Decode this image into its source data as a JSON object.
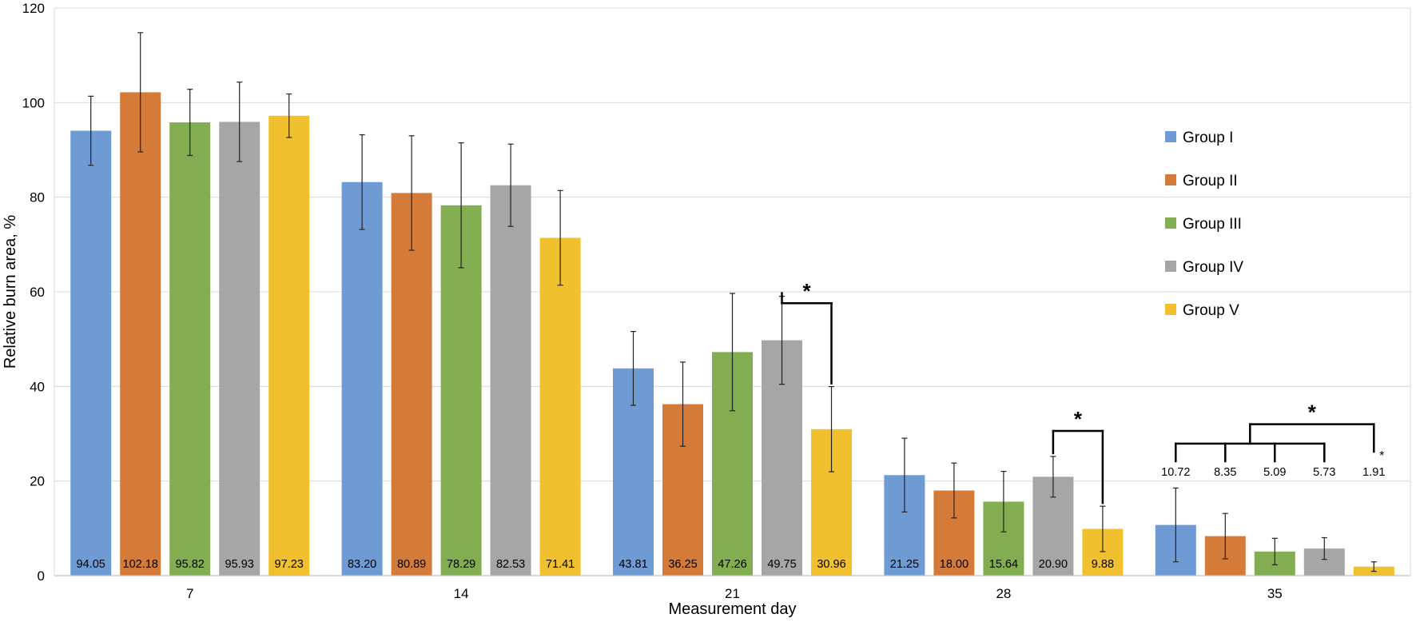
{
  "chart_data": {
    "type": "bar",
    "title": "",
    "xlabel": "Measurement day",
    "ylabel": "Relative burn area, %",
    "ylim": [
      0,
      120
    ],
    "yticks": [
      0,
      20,
      40,
      60,
      80,
      100,
      120
    ],
    "grid": true,
    "legend_position": "right",
    "categories": [
      "7",
      "14",
      "21",
      "28",
      "35"
    ],
    "series": [
      {
        "name": "Group I",
        "color": "#6f9bd4",
        "values": [
          94.05,
          83.2,
          43.81,
          21.25,
          10.72
        ],
        "labels": [
          "94.05",
          "83.20",
          "43.81",
          "21.25",
          "10.72"
        ],
        "error": [
          7.3,
          10.0,
          7.8,
          7.8,
          7.8
        ]
      },
      {
        "name": "Group II",
        "color": "#d57b39",
        "values": [
          102.18,
          80.89,
          36.25,
          18.0,
          8.35
        ],
        "labels": [
          "102.18",
          "80.89",
          "36.25",
          "18.00",
          "8.35"
        ],
        "error": [
          12.6,
          12.1,
          8.9,
          5.8,
          4.8
        ]
      },
      {
        "name": "Group III",
        "color": "#82ad51",
        "values": [
          95.82,
          78.29,
          47.26,
          15.64,
          5.09
        ],
        "labels": [
          "95.82",
          "78.29",
          "47.26",
          "15.64",
          "5.09"
        ],
        "error": [
          7.0,
          13.2,
          12.4,
          6.4,
          2.8
        ]
      },
      {
        "name": "Group IV",
        "color": "#a6a6a6",
        "values": [
          95.93,
          82.53,
          49.75,
          20.9,
          5.73
        ],
        "labels": [
          "95.93",
          "82.53",
          "49.75",
          "20.90",
          "5.73"
        ],
        "error": [
          8.4,
          8.7,
          9.3,
          4.3,
          2.3
        ]
      },
      {
        "name": "Group V",
        "color": "#f0c02f",
        "values": [
          97.23,
          71.41,
          30.96,
          9.88,
          1.91
        ],
        "labels": [
          "97.23",
          "71.41",
          "30.96",
          "9.88",
          "1.91"
        ],
        "error": [
          4.6,
          10.0,
          9.0,
          4.8,
          1.0
        ]
      }
    ],
    "annotations": {
      "significance_star": "*",
      "day21": {
        "from_group": 3,
        "to_group": 4,
        "level": 57.6
      },
      "day28": {
        "from_group": 3,
        "to_group": 4,
        "level": 30.6
      },
      "day35": {
        "groups": [
          0,
          1,
          2,
          3
        ],
        "to_group": 4,
        "level_low": 27.9,
        "level_high": 32.0
      },
      "day35_value_labels": [
        "10.72",
        "8.35",
        "5.09",
        "5.73",
        "1.91"
      ],
      "day35_small_star": "*"
    }
  }
}
